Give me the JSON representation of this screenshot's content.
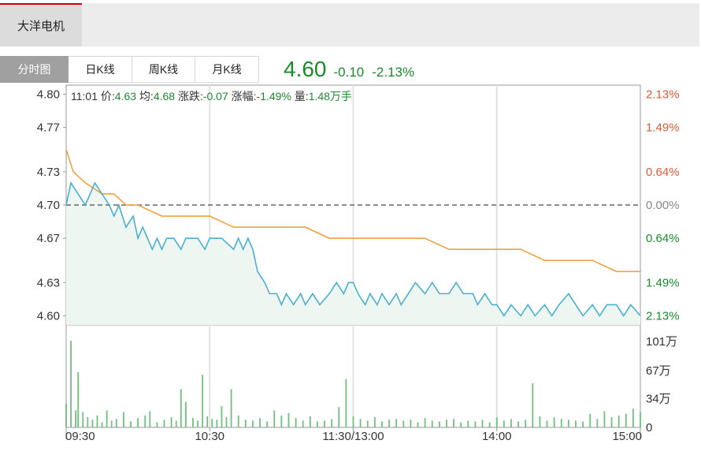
{
  "stock_tab": "大洋电机",
  "tabs": [
    "分时图",
    "日K线",
    "周K线",
    "月K线"
  ],
  "active_tab": "分时图",
  "quote": {
    "price": "4.60",
    "change": "-0.10",
    "change_pct": "-2.13%"
  },
  "info_bar": {
    "time": "11:01",
    "price_label": "价:",
    "price": "4.63",
    "avg_label": "均:",
    "avg": "4.68",
    "change_label": "涨跌:",
    "change": "-0.07",
    "pct_label": "涨幅:",
    "pct": "-1.49%",
    "volume_label": "量:",
    "volume": "1.48万手"
  },
  "colors": {
    "price_line": "#4aafd0",
    "avg_line": "#f0a040",
    "up": "#e05a3a",
    "down": "#1b8a2b",
    "fill": "#edf6f1",
    "volume": "#6fbf7f"
  },
  "chart_data": {
    "type": "line",
    "ylim": [
      4.5918,
      4.8082
    ],
    "prev_close": 4.7,
    "y_ticks_left": [
      "4.80",
      "4.77",
      "4.73",
      "4.70",
      "4.67",
      "4.63",
      "4.60"
    ],
    "y_ticks_left_values": [
      4.8,
      4.77,
      4.73,
      4.7,
      4.67,
      4.63,
      4.6
    ],
    "y_ticks_right": [
      "2.13%",
      "1.49%",
      "0.64%",
      "0.00%",
      "0.64%",
      "1.49%",
      "2.13%"
    ],
    "x_ticks": [
      "09:30",
      "10:30",
      "11:30/13:00",
      "14:00",
      "15:00"
    ],
    "x_tick_minutes": [
      0,
      60,
      120,
      180,
      240
    ],
    "volume_ticks": [
      "101万",
      "67万",
      "34万",
      "0"
    ],
    "volume_tick_values": [
      101,
      67,
      34,
      0
    ],
    "volume_unit": "万",
    "series": [
      {
        "key": "price",
        "minutes": [
          0,
          2,
          5,
          8,
          10,
          12,
          15,
          18,
          20,
          22,
          25,
          28,
          30,
          32,
          34,
          36,
          38,
          40,
          42,
          45,
          48,
          50,
          52,
          55,
          58,
          60,
          65,
          70,
          72,
          74,
          76,
          78,
          80,
          83,
          85,
          88,
          90,
          92,
          95,
          98,
          100,
          103,
          106,
          110,
          113,
          116,
          118,
          120,
          122,
          125,
          127,
          130,
          132,
          135,
          138,
          140,
          143,
          146,
          150,
          153,
          156,
          160,
          163,
          166,
          170,
          172,
          175,
          178,
          180,
          183,
          186,
          190,
          193,
          196,
          200,
          203,
          206,
          210,
          213,
          216,
          220,
          223,
          226,
          230,
          233,
          236,
          240
        ],
        "values": [
          4.7,
          4.72,
          4.71,
          4.7,
          4.71,
          4.72,
          4.71,
          4.7,
          4.69,
          4.7,
          4.68,
          4.69,
          4.67,
          4.68,
          4.67,
          4.66,
          4.67,
          4.66,
          4.67,
          4.67,
          4.66,
          4.67,
          4.67,
          4.67,
          4.66,
          4.67,
          4.67,
          4.66,
          4.67,
          4.66,
          4.67,
          4.66,
          4.64,
          4.63,
          4.62,
          4.62,
          4.61,
          4.62,
          4.61,
          4.62,
          4.61,
          4.62,
          4.61,
          4.62,
          4.63,
          4.62,
          4.63,
          4.63,
          4.62,
          4.61,
          4.62,
          4.61,
          4.62,
          4.61,
          4.62,
          4.61,
          4.62,
          4.63,
          4.62,
          4.63,
          4.62,
          4.62,
          4.63,
          4.62,
          4.62,
          4.61,
          4.62,
          4.61,
          4.61,
          4.6,
          4.61,
          4.6,
          4.61,
          4.6,
          4.61,
          4.6,
          4.61,
          4.62,
          4.61,
          4.6,
          4.61,
          4.6,
          4.61,
          4.61,
          4.6,
          4.61,
          4.6
        ]
      },
      {
        "key": "avg",
        "minutes": [
          0,
          3,
          8,
          15,
          20,
          25,
          30,
          40,
          50,
          60,
          70,
          80,
          90,
          100,
          110,
          120,
          130,
          140,
          150,
          160,
          170,
          180,
          190,
          200,
          210,
          220,
          230,
          240
        ],
        "values": [
          4.75,
          4.73,
          4.72,
          4.71,
          4.71,
          4.7,
          4.7,
          4.69,
          4.69,
          4.69,
          4.68,
          4.68,
          4.68,
          4.68,
          4.67,
          4.67,
          4.67,
          4.67,
          4.67,
          4.66,
          4.66,
          4.66,
          4.66,
          4.65,
          4.65,
          4.65,
          4.64,
          4.64
        ]
      }
    ],
    "volume_bars": [
      {
        "minute": 0,
        "value": 28
      },
      {
        "minute": 2,
        "value": 102
      },
      {
        "minute": 4,
        "value": 20
      },
      {
        "minute": 5,
        "value": 65
      },
      {
        "minute": 7,
        "value": 18
      },
      {
        "minute": 9,
        "value": 12
      },
      {
        "minute": 11,
        "value": 9
      },
      {
        "minute": 13,
        "value": 14
      },
      {
        "minute": 15,
        "value": 6
      },
      {
        "minute": 17,
        "value": 20
      },
      {
        "minute": 19,
        "value": 8
      },
      {
        "minute": 21,
        "value": 10
      },
      {
        "minute": 24,
        "value": 18
      },
      {
        "minute": 27,
        "value": 7
      },
      {
        "minute": 30,
        "value": 11
      },
      {
        "minute": 33,
        "value": 14
      },
      {
        "minute": 35,
        "value": 19
      },
      {
        "minute": 38,
        "value": 6
      },
      {
        "minute": 41,
        "value": 9
      },
      {
        "minute": 44,
        "value": 12
      },
      {
        "minute": 46,
        "value": 8
      },
      {
        "minute": 48,
        "value": 45
      },
      {
        "minute": 50,
        "value": 30
      },
      {
        "minute": 53,
        "value": 11
      },
      {
        "minute": 55,
        "value": 8
      },
      {
        "minute": 57,
        "value": 62
      },
      {
        "minute": 59,
        "value": 13
      },
      {
        "minute": 61,
        "value": 10
      },
      {
        "minute": 63,
        "value": 9
      },
      {
        "minute": 65,
        "value": 25
      },
      {
        "minute": 67,
        "value": 12
      },
      {
        "minute": 69,
        "value": 45
      },
      {
        "minute": 72,
        "value": 14
      },
      {
        "minute": 75,
        "value": 9
      },
      {
        "minute": 78,
        "value": 8
      },
      {
        "minute": 81,
        "value": 11
      },
      {
        "minute": 84,
        "value": 7
      },
      {
        "minute": 87,
        "value": 20
      },
      {
        "minute": 90,
        "value": 14
      },
      {
        "minute": 93,
        "value": 17
      },
      {
        "minute": 96,
        "value": 11
      },
      {
        "minute": 99,
        "value": 8
      },
      {
        "minute": 102,
        "value": 13
      },
      {
        "minute": 105,
        "value": 7
      },
      {
        "minute": 108,
        "value": 8
      },
      {
        "minute": 111,
        "value": 10
      },
      {
        "minute": 114,
        "value": 24
      },
      {
        "minute": 117,
        "value": 57
      },
      {
        "minute": 120,
        "value": 13
      },
      {
        "minute": 123,
        "value": 10
      },
      {
        "minute": 126,
        "value": 8
      },
      {
        "minute": 129,
        "value": 12
      },
      {
        "minute": 132,
        "value": 7
      },
      {
        "minute": 135,
        "value": 9
      },
      {
        "minute": 138,
        "value": 10
      },
      {
        "minute": 141,
        "value": 8
      },
      {
        "minute": 144,
        "value": 9
      },
      {
        "minute": 147,
        "value": 6
      },
      {
        "minute": 150,
        "value": 11
      },
      {
        "minute": 153,
        "value": 8
      },
      {
        "minute": 156,
        "value": 7
      },
      {
        "minute": 159,
        "value": 9
      },
      {
        "minute": 162,
        "value": 10
      },
      {
        "minute": 165,
        "value": 6
      },
      {
        "minute": 168,
        "value": 8
      },
      {
        "minute": 171,
        "value": 7
      },
      {
        "minute": 174,
        "value": 9
      },
      {
        "minute": 177,
        "value": 6
      },
      {
        "minute": 180,
        "value": 12
      },
      {
        "minute": 183,
        "value": 8
      },
      {
        "minute": 186,
        "value": 10
      },
      {
        "minute": 189,
        "value": 7
      },
      {
        "minute": 192,
        "value": 9
      },
      {
        "minute": 195,
        "value": 52
      },
      {
        "minute": 198,
        "value": 13
      },
      {
        "minute": 201,
        "value": 8
      },
      {
        "minute": 204,
        "value": 12
      },
      {
        "minute": 207,
        "value": 10
      },
      {
        "minute": 210,
        "value": 9
      },
      {
        "minute": 213,
        "value": 8
      },
      {
        "minute": 216,
        "value": 7
      },
      {
        "minute": 219,
        "value": 16
      },
      {
        "minute": 222,
        "value": 10
      },
      {
        "minute": 225,
        "value": 19
      },
      {
        "minute": 228,
        "value": 12
      },
      {
        "minute": 231,
        "value": 14
      },
      {
        "minute": 234,
        "value": 16
      },
      {
        "minute": 237,
        "value": 22
      },
      {
        "minute": 240,
        "value": 18
      }
    ]
  }
}
